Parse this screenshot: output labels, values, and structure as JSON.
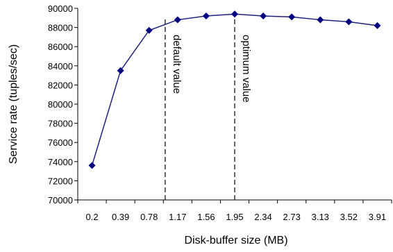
{
  "chart_data": {
    "type": "line",
    "title": "",
    "xlabel": "Disk-buffer size (MB)",
    "ylabel": "Service rate (tuples/sec)",
    "categories": [
      "0.2",
      "0.39",
      "0.78",
      "1.17",
      "1.56",
      "1.95",
      "2.34",
      "2.73",
      "3.13",
      "3.52",
      "3.91"
    ],
    "x": [
      0.2,
      0.39,
      0.78,
      1.17,
      1.56,
      1.95,
      2.34,
      2.73,
      3.13,
      3.52,
      3.91
    ],
    "series": [
      {
        "values": [
          73600,
          83500,
          87700,
          88800,
          89200,
          89400,
          89200,
          89100,
          88800,
          88600,
          88200
        ]
      }
    ],
    "ylim": [
      70000,
      90000
    ],
    "yticks": [
      70000,
      72000,
      74000,
      76000,
      78000,
      80000,
      82000,
      84000,
      86000,
      88000,
      90000
    ],
    "annotations": [
      {
        "label": "default value",
        "x": 1.0
      },
      {
        "label": "optimum value",
        "x": 1.95
      }
    ],
    "grid": false,
    "legend": "none",
    "colors": {
      "series": "#1f1f7a",
      "marker": "#000080",
      "axis": "#000000"
    }
  }
}
